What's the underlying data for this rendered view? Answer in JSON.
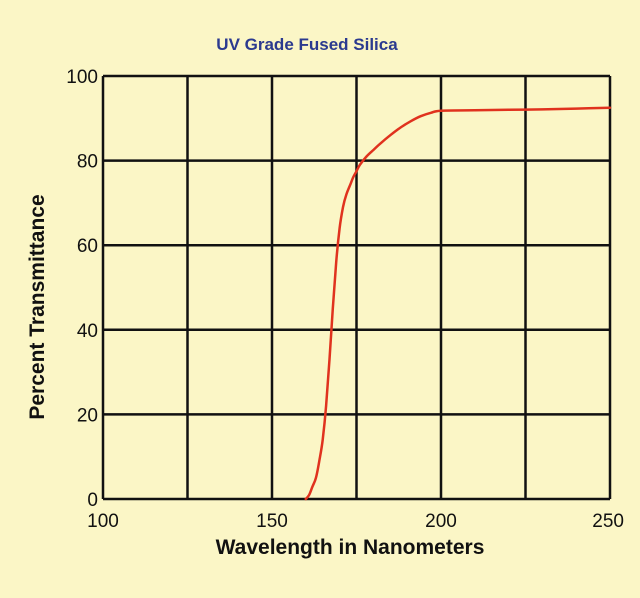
{
  "chart_data": {
    "type": "line",
    "title": "UV Grade Fused Silica",
    "xlabel": "Wavelength in Nanometers",
    "ylabel": "Percent Transmittance",
    "xlim": [
      100,
      250
    ],
    "ylim": [
      0,
      100
    ],
    "x_ticks": [
      100,
      150,
      200,
      250
    ],
    "y_ticks": [
      0,
      20,
      40,
      60,
      80,
      100
    ],
    "x_grid": [
      100,
      125,
      150,
      175,
      200,
      225,
      250
    ],
    "y_grid": [
      0,
      20,
      40,
      60,
      80,
      100
    ],
    "grid": true,
    "series": [
      {
        "color": "#e0321e",
        "x": [
          160,
          161,
          162,
          163,
          164,
          165,
          166,
          167,
          168,
          169,
          170,
          171,
          172,
          173,
          174,
          175,
          176,
          178,
          180,
          182,
          185,
          188,
          191,
          194,
          197,
          200,
          210,
          220,
          230,
          240,
          250
        ],
        "y": [
          0,
          1,
          3,
          5,
          9,
          14,
          22,
          33,
          45,
          56,
          64,
          69,
          72,
          74,
          76,
          77.5,
          79,
          81,
          82.5,
          84,
          86,
          87.8,
          89.3,
          90.5,
          91.3,
          91.8,
          91.9,
          92,
          92.1,
          92.3,
          92.5
        ]
      }
    ],
    "colors": {
      "title": "#2b3a8f",
      "background": "#fbf6c6",
      "grid": "#111111",
      "curve": "#e0321e"
    }
  }
}
